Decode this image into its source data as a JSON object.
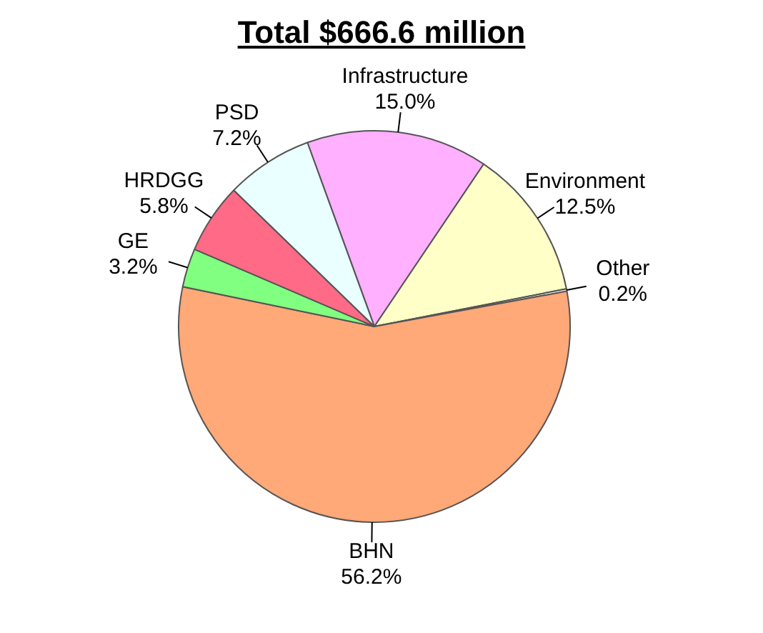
{
  "chart_data": {
    "type": "pie",
    "title": "Total $666.6 million",
    "categories": [
      "Infrastructure",
      "Environment",
      "Other",
      "BHN",
      "GE",
      "HRDGG",
      "PSD"
    ],
    "values": [
      15.0,
      12.5,
      0.2,
      56.2,
      3.2,
      5.8,
      7.2
    ],
    "value_labels": [
      "15.0%",
      "12.5%",
      "0.2%",
      "56.2%",
      "3.2%",
      "5.8%",
      "7.2%"
    ],
    "colors": [
      "#ffb0ff",
      "#ffffc8",
      "#e8e8e8",
      "#ffa878",
      "#80ff80",
      "#ff6a86",
      "#eaffff"
    ],
    "legend": false
  }
}
